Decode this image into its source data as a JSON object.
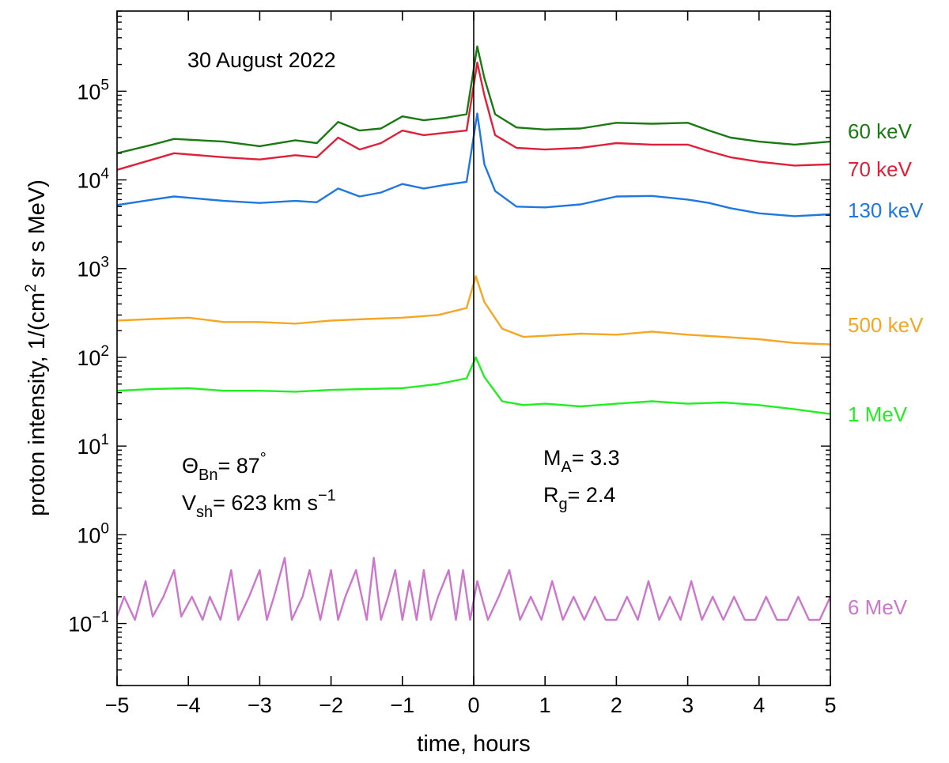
{
  "chart_data": {
    "type": "line",
    "title": "30 August 2022",
    "xlabel": "time, hours",
    "ylabel_main": "proton intensity, 1/(cm",
    "ylabel_sup": "2",
    "ylabel_end": " sr s MeV)",
    "xlim": [
      -5,
      5
    ],
    "ylim": [
      0.02,
      800000
    ],
    "yscale": "log",
    "x_ticks": [
      -5,
      -4,
      -3,
      -2,
      -1,
      0,
      1,
      2,
      3,
      4,
      5
    ],
    "x_tick_labels": [
      "−5",
      "−4",
      "−3",
      "−2",
      "−1",
      "0",
      "1",
      "2",
      "3",
      "4",
      "5"
    ],
    "y_tick_exponents": [
      "5",
      "4",
      "3",
      "2",
      "1",
      "0",
      "−1"
    ],
    "y_tick_values": [
      100000,
      10000,
      1000,
      100,
      10,
      1,
      0.1
    ],
    "y_tick_base": "10",
    "shock_time": 0,
    "annotations": {
      "theta_sym": "Θ",
      "theta_sub": "Bn",
      "theta_val": "= 87",
      "theta_deg": "°",
      "v_sym": "V",
      "v_sub": "sh",
      "v_val": "= 623 km s",
      "v_sup": "−1",
      "ma_sym": "M",
      "ma_sub": "A",
      "ma_val": "= 3.3",
      "rg_sym": "R",
      "rg_sub": "g",
      "rg_val": "= 2.4"
    },
    "series": [
      {
        "name": "60 keV",
        "color": "#1a7a12",
        "x": [
          -5,
          -4.5,
          -4.2,
          -3.5,
          -3,
          -2.5,
          -2.2,
          -1.9,
          -1.6,
          -1.3,
          -1,
          -0.7,
          -0.4,
          -0.1,
          0.05,
          0.15,
          0.3,
          0.6,
          1,
          1.5,
          2,
          2.5,
          3,
          3.3,
          3.6,
          4,
          4.5,
          5
        ],
        "y": [
          20000,
          25000,
          29000,
          27000,
          24000,
          28000,
          26000,
          45000,
          36000,
          38000,
          52000,
          47000,
          50000,
          55000,
          320000,
          140000,
          55000,
          39000,
          37000,
          38000,
          44000,
          43000,
          44000,
          36000,
          30000,
          27000,
          25000,
          27000
        ]
      },
      {
        "name": "70 keV",
        "color": "#e0203a",
        "x": [
          -5,
          -4.5,
          -4.2,
          -3.5,
          -3,
          -2.5,
          -2.2,
          -1.9,
          -1.6,
          -1.3,
          -1,
          -0.7,
          -0.4,
          -0.1,
          0.05,
          0.15,
          0.3,
          0.6,
          1,
          1.5,
          2,
          2.5,
          3,
          3.3,
          3.6,
          4,
          4.5,
          5
        ],
        "y": [
          13000,
          17000,
          20000,
          18000,
          17000,
          19000,
          18000,
          30000,
          22000,
          26000,
          36000,
          32000,
          34000,
          36000,
          210000,
          90000,
          32000,
          23000,
          22000,
          23000,
          26000,
          25000,
          25000,
          21000,
          18000,
          16000,
          14500,
          15000
        ]
      },
      {
        "name": "130 keV",
        "color": "#1f78e0",
        "x": [
          -5,
          -4.5,
          -4.2,
          -3.5,
          -3,
          -2.5,
          -2.2,
          -1.9,
          -1.6,
          -1.3,
          -1,
          -0.7,
          -0.4,
          -0.1,
          0.05,
          0.15,
          0.3,
          0.6,
          1,
          1.5,
          2,
          2.5,
          3,
          3.3,
          3.6,
          4,
          4.5,
          5
        ],
        "y": [
          5200,
          6000,
          6500,
          5800,
          5500,
          5800,
          5600,
          8000,
          6500,
          7200,
          9000,
          8000,
          8800,
          9500,
          56000,
          15000,
          7500,
          5000,
          4900,
          5300,
          6500,
          6600,
          6000,
          5500,
          4800,
          4200,
          3900,
          4100
        ]
      },
      {
        "name": "500 keV",
        "color": "#f5a623",
        "x": [
          -5,
          -4.5,
          -4,
          -3.5,
          -3,
          -2.5,
          -2,
          -1.5,
          -1,
          -0.5,
          -0.1,
          0.03,
          0.15,
          0.4,
          0.7,
          1,
          1.5,
          2,
          2.5,
          3,
          3.5,
          4,
          4.5,
          5
        ],
        "y": [
          260,
          270,
          280,
          250,
          250,
          240,
          260,
          270,
          280,
          300,
          360,
          820,
          420,
          210,
          170,
          175,
          185,
          180,
          195,
          180,
          170,
          160,
          145,
          140
        ]
      },
      {
        "name": "1 MeV",
        "color": "#22ee22",
        "x": [
          -5,
          -4.5,
          -4,
          -3.5,
          -3,
          -2.5,
          -2,
          -1.5,
          -1,
          -0.5,
          -0.1,
          0.03,
          0.15,
          0.4,
          0.7,
          1,
          1.5,
          2,
          2.5,
          3,
          3.5,
          4,
          4.5,
          5
        ],
        "y": [
          42,
          44,
          45,
          42,
          42,
          41,
          43,
          44,
          45,
          50,
          58,
          100,
          60,
          32,
          29,
          30,
          28,
          30,
          32,
          30,
          31,
          29,
          26,
          23
        ]
      },
      {
        "name": "6 MeV",
        "color": "#cc77cc",
        "x": [
          -5,
          -4.9,
          -4.75,
          -4.6,
          -4.5,
          -4.35,
          -4.2,
          -4.1,
          -3.95,
          -3.8,
          -3.7,
          -3.55,
          -3.4,
          -3.3,
          -3.15,
          -3.0,
          -2.9,
          -2.8,
          -2.65,
          -2.55,
          -2.4,
          -2.3,
          -2.15,
          -2.0,
          -1.9,
          -1.8,
          -1.65,
          -1.5,
          -1.4,
          -1.3,
          -1.2,
          -1.1,
          -1.0,
          -0.9,
          -0.8,
          -0.7,
          -0.6,
          -0.5,
          -0.35,
          -0.25,
          -0.15,
          -0.05,
          0.05,
          0.2,
          0.35,
          0.5,
          0.65,
          0.8,
          0.95,
          1.1,
          1.25,
          1.4,
          1.55,
          1.7,
          1.85,
          2.0,
          2.15,
          2.3,
          2.45,
          2.6,
          2.75,
          2.9,
          3.05,
          3.2,
          3.35,
          3.5,
          3.65,
          3.8,
          3.95,
          4.1,
          4.25,
          4.4,
          4.55,
          4.7,
          4.85,
          5.0
        ],
        "y": [
          0.12,
          0.2,
          0.11,
          0.3,
          0.12,
          0.2,
          0.4,
          0.12,
          0.2,
          0.11,
          0.2,
          0.11,
          0.4,
          0.11,
          0.2,
          0.4,
          0.11,
          0.2,
          0.55,
          0.11,
          0.2,
          0.4,
          0.11,
          0.4,
          0.11,
          0.2,
          0.4,
          0.11,
          0.55,
          0.11,
          0.2,
          0.4,
          0.11,
          0.3,
          0.11,
          0.4,
          0.11,
          0.2,
          0.4,
          0.11,
          0.4,
          0.11,
          0.3,
          0.11,
          0.2,
          0.4,
          0.11,
          0.2,
          0.11,
          0.3,
          0.11,
          0.2,
          0.11,
          0.2,
          0.11,
          0.11,
          0.2,
          0.11,
          0.3,
          0.11,
          0.2,
          0.11,
          0.3,
          0.11,
          0.2,
          0.11,
          0.2,
          0.11,
          0.11,
          0.2,
          0.11,
          0.11,
          0.2,
          0.11,
          0.11,
          0.2
        ]
      }
    ]
  }
}
